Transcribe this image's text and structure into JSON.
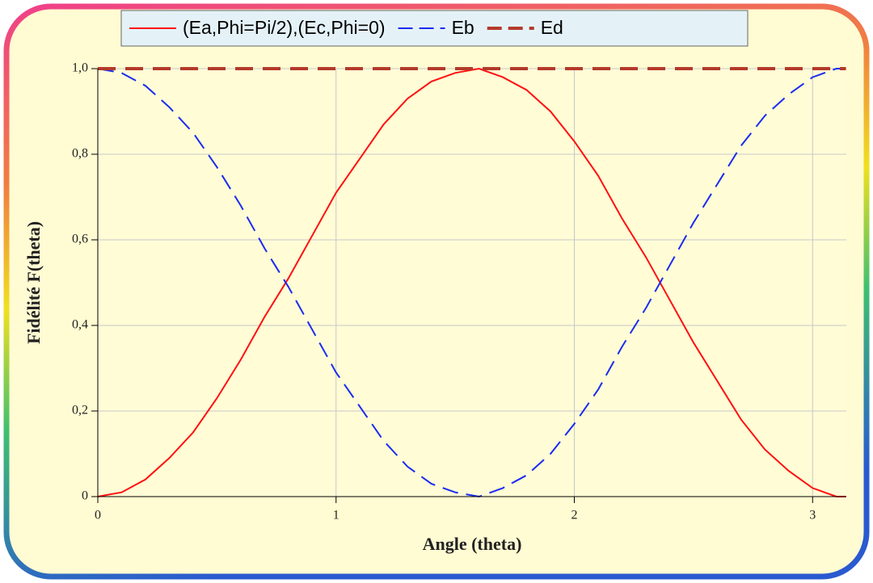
{
  "chart_data": {
    "type": "line",
    "xlabel": "Angle (theta)",
    "ylabel": "Fidélité F(theta)",
    "x": [
      0,
      0.1,
      0.2,
      0.3,
      0.4,
      0.5,
      0.6,
      0.7,
      0.8,
      0.9,
      1.0,
      1.1,
      1.2,
      1.3,
      1.4,
      1.5,
      1.6,
      1.7,
      1.8,
      1.9,
      2.0,
      2.1,
      2.2,
      2.3,
      2.4,
      2.5,
      2.6,
      2.7,
      2.8,
      2.9,
      3.0,
      3.1,
      3.14
    ],
    "series": [
      {
        "name": "(Ea,Phi=Pi/2),(Ec,Phi=0)",
        "color": "#ff1010",
        "dash": "solid",
        "width": 2,
        "values": [
          0,
          0.01,
          0.04,
          0.09,
          0.15,
          0.23,
          0.32,
          0.42,
          0.51,
          0.61,
          0.71,
          0.79,
          0.87,
          0.93,
          0.97,
          0.99,
          1.0,
          0.98,
          0.95,
          0.9,
          0.83,
          0.75,
          0.65,
          0.56,
          0.46,
          0.36,
          0.27,
          0.18,
          0.11,
          0.06,
          0.02,
          0,
          0
        ]
      },
      {
        "name": "Eb",
        "color": "#1a2cf0",
        "dash": "dashed",
        "width": 2,
        "values": [
          1,
          0.99,
          0.96,
          0.91,
          0.85,
          0.77,
          0.68,
          0.58,
          0.49,
          0.39,
          0.29,
          0.21,
          0.13,
          0.07,
          0.03,
          0.01,
          0,
          0.02,
          0.05,
          0.1,
          0.17,
          0.25,
          0.35,
          0.44,
          0.54,
          0.64,
          0.73,
          0.82,
          0.89,
          0.94,
          0.98,
          1,
          1
        ]
      },
      {
        "name": "Ed",
        "color": "#b33a2a",
        "dash": "dashed",
        "width": 4,
        "values": [
          1,
          1,
          1,
          1,
          1,
          1,
          1,
          1,
          1,
          1,
          1,
          1,
          1,
          1,
          1,
          1,
          1,
          1,
          1,
          1,
          1,
          1,
          1,
          1,
          1,
          1,
          1,
          1,
          1,
          1,
          1,
          1,
          1
        ]
      }
    ],
    "xlim": [
      0,
      3.14159
    ],
    "xticks": [
      0,
      1,
      2,
      3
    ],
    "ylim": [
      0,
      1
    ],
    "yticks": [
      0,
      {
        "value": 0.2,
        "label": "0,2"
      },
      {
        "value": 0.4,
        "label": "0,4"
      },
      {
        "value": 0.6,
        "label": "0,6"
      },
      {
        "value": 0.8,
        "label": "0,8"
      },
      {
        "value": 1,
        "label": "1,0"
      }
    ],
    "grid": true,
    "legend": "top"
  }
}
